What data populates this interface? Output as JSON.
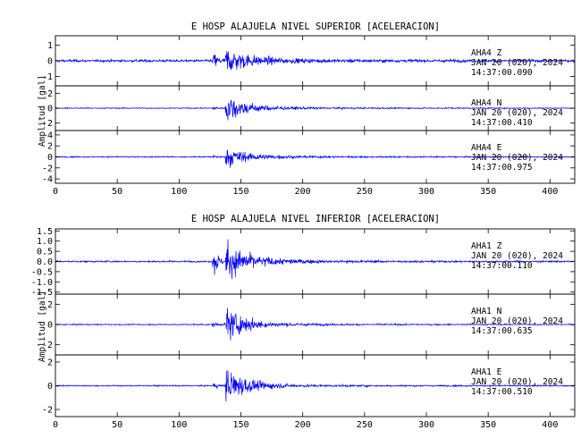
{
  "chart_data": [
    {
      "type": "line",
      "title": "E HOSP ALAJUELA NIVEL SUPERIOR [ACELERACION]",
      "xlabel": "",
      "ylabel": "Amplitud  [gal]",
      "xlim": [
        0,
        420
      ],
      "xticks": [
        0,
        50,
        100,
        150,
        200,
        250,
        300,
        350,
        400
      ],
      "x_tick_labels": [
        "0",
        "50",
        "100",
        "150",
        "200",
        "250",
        "300",
        "350",
        "400"
      ],
      "traces": [
        {
          "station": "AHA4",
          "component": "Z",
          "date": "JAN 20 (020), 2024",
          "time": "14:37:00.090",
          "ylim": [
            -1.6,
            1.6
          ],
          "yticks": [
            -1,
            0,
            1
          ],
          "y_tick_labels": [
            "-1",
            "0",
            "1"
          ],
          "envelope": {
            "noise": 0.12,
            "p_onset": 127,
            "p_peak": 1.0,
            "s_onset": 137,
            "s_peak": 1.2,
            "decay": 18,
            "coda": 0.15
          }
        },
        {
          "station": "AHA4",
          "component": "N",
          "date": "JAN 20 (020), 2024",
          "time": "14:37:00.410",
          "ylim": [
            -3.0,
            3.0
          ],
          "yticks": [
            -2,
            0,
            2
          ],
          "y_tick_labels": [
            "-2",
            "0",
            "2"
          ],
          "envelope": {
            "noise": 0.1,
            "p_onset": 127,
            "p_peak": 0.4,
            "s_onset": 137,
            "s_peak": 3.0,
            "decay": 16,
            "coda": 0.2
          }
        },
        {
          "station": "AHA4",
          "component": "E",
          "date": "JAN 20 (020), 2024",
          "time": "14:37:00.975",
          "ylim": [
            -4.8,
            4.8
          ],
          "yticks": [
            -4,
            -2,
            0,
            2,
            4
          ],
          "y_tick_labels": [
            "-4",
            "-2",
            "0",
            "2",
            "4"
          ],
          "envelope": {
            "noise": 0.15,
            "p_onset": 127,
            "p_peak": 0.6,
            "s_onset": 137,
            "s_peak": 2.8,
            "decay": 16,
            "coda": 0.3
          }
        }
      ]
    },
    {
      "type": "line",
      "title": "E HOSP ALAJUELA NIVEL INFERIOR [ACELERACION]",
      "xlabel": "",
      "ylabel": "Amplitud  [gal]",
      "xlim": [
        0,
        420
      ],
      "xticks": [
        0,
        50,
        100,
        150,
        200,
        250,
        300,
        350,
        400
      ],
      "x_tick_labels": [
        "0",
        "50",
        "100",
        "150",
        "200",
        "250",
        "300",
        "350",
        "400"
      ],
      "traces": [
        {
          "station": "AHA1",
          "component": "Z",
          "date": "JAN 20 (020), 2024",
          "time": "14:37:00.110",
          "ylim": [
            -1.6,
            1.6
          ],
          "yticks": [
            -1.5,
            -1.0,
            -0.5,
            0.0,
            0.5,
            1.0,
            1.5
          ],
          "y_tick_labels": [
            "-1.5",
            "-1.0",
            "-0.5",
            "0.0",
            "0.5",
            "1.0",
            "1.5"
          ],
          "envelope": {
            "noise": 0.06,
            "p_onset": 127,
            "p_peak": 1.6,
            "s_onset": 137,
            "s_peak": 1.3,
            "decay": 20,
            "coda": 0.1
          }
        },
        {
          "station": "AHA1",
          "component": "N",
          "date": "JAN 20 (020), 2024",
          "time": "14:37:00.635",
          "ylim": [
            -3.0,
            3.0
          ],
          "yticks": [
            -2,
            0,
            2
          ],
          "y_tick_labels": [
            "-2",
            "0",
            "2"
          ],
          "envelope": {
            "noise": 0.08,
            "p_onset": 127,
            "p_peak": 0.4,
            "s_onset": 137,
            "s_peak": 2.6,
            "decay": 16,
            "coda": 0.15
          }
        },
        {
          "station": "AHA1",
          "component": "E",
          "date": "JAN 20 (020), 2024",
          "time": "14:37:00.510",
          "ylim": [
            -2.6,
            2.6
          ],
          "yticks": [
            -2,
            0,
            2
          ],
          "y_tick_labels": [
            "-2",
            "0",
            "2"
          ],
          "envelope": {
            "noise": 0.08,
            "p_onset": 127,
            "p_peak": 0.5,
            "s_onset": 137,
            "s_peak": 2.5,
            "decay": 16,
            "coda": 0.12
          }
        }
      ]
    }
  ],
  "colors": {
    "trace": "#0000ff",
    "axes": "#000000",
    "background": "#ffffff"
  }
}
